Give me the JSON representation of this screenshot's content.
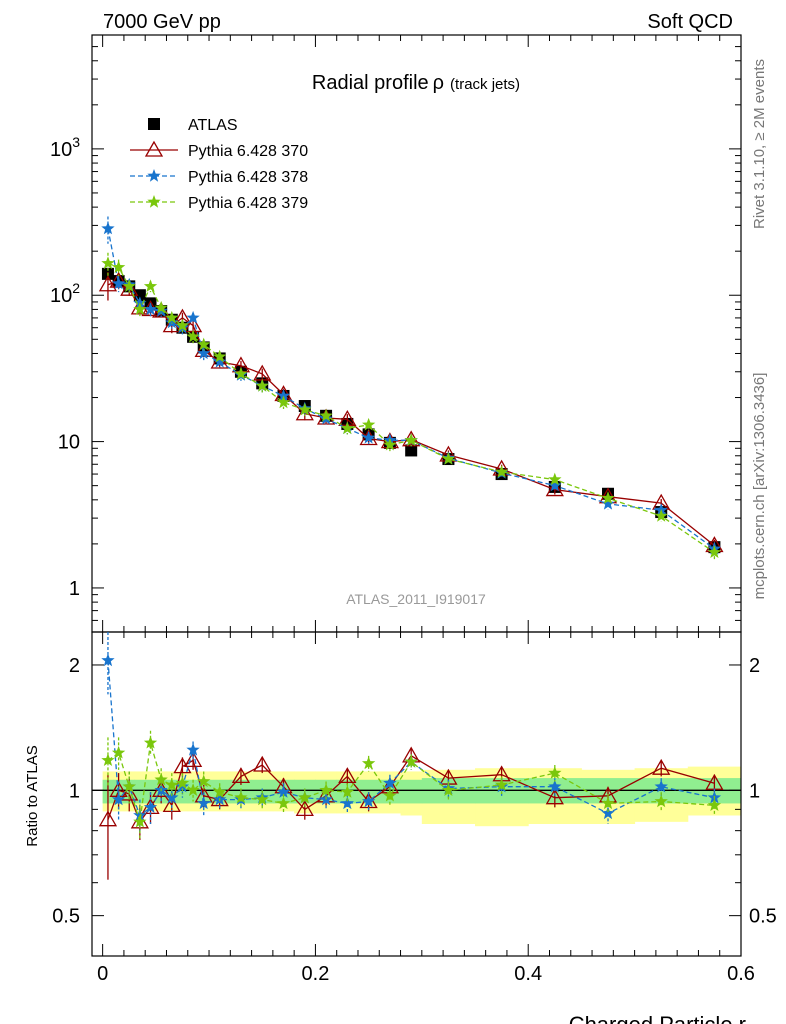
{
  "header": {
    "left": "7000 GeV pp",
    "right": "Soft QCD"
  },
  "side_labels": {
    "top": "Rivet 3.1.10, ≥ 2M events",
    "bottom": "mcplots.cern.ch [arXiv:1306.3436]"
  },
  "chart_data": [
    {
      "type": "scatter",
      "title": "Radial profile",
      "title_symbol": "ρ",
      "title_suffix": "(track jets)",
      "analysis_label": "ATLAS_2011_I919017",
      "xlabel": "",
      "ylabel": "",
      "xlim": [
        -0.01,
        0.6
      ],
      "ylim": [
        0.5,
        6000
      ],
      "y_scale": "log",
      "y_ticks": [
        {
          "value": 1,
          "label": "1"
        },
        {
          "value": 10,
          "label": "10"
        },
        {
          "value": 100,
          "label": "10",
          "sup": "2"
        },
        {
          "value": 1000,
          "label": "10",
          "sup": "3"
        }
      ],
      "legend_position": "top-left",
      "x": [
        0.005,
        0.015,
        0.025,
        0.035,
        0.045,
        0.055,
        0.065,
        0.075,
        0.085,
        0.095,
        0.11,
        0.13,
        0.15,
        0.17,
        0.19,
        0.21,
        0.23,
        0.25,
        0.27,
        0.29,
        0.325,
        0.375,
        0.425,
        0.475,
        0.525,
        0.575
      ],
      "series": [
        {
          "name": "ATLAS",
          "color": "#000000",
          "marker": "square",
          "values": [
            140,
            125,
            115,
            100,
            88,
            78,
            68,
            60,
            52,
            44,
            37,
            30,
            25,
            20.5,
            17.5,
            15,
            13.2,
            11.2,
            9.8,
            8.7,
            7.6,
            6.0,
            4.9,
            4.4,
            3.3,
            1.9
          ]
        },
        {
          "name": "Pythia 6.428 370",
          "color": "#990000",
          "marker": "triangle",
          "line": "solid",
          "values": [
            118,
            125,
            110,
            82,
            80,
            78,
            62,
            70,
            62,
            42,
            35,
            33,
            29,
            21,
            15.5,
            14.5,
            14.2,
            10.5,
            10.0,
            10.3,
            8.1,
            6.5,
            4.7,
            4.2,
            3.8,
            1.95
          ],
          "errors": [
            26,
            15,
            11,
            8,
            8,
            7,
            7,
            6,
            5,
            4,
            3,
            2.5,
            2.5,
            2,
            1.5,
            1.2,
            1.2,
            1,
            0.9,
            0.9,
            0.6,
            0.45,
            0.35,
            0.3,
            0.25,
            0.18
          ]
        },
        {
          "name": "Pythia 6.428 378",
          "color": "#1874cd",
          "marker": "star",
          "line": "dashed",
          "values": [
            285,
            120,
            118,
            88,
            80,
            78,
            65,
            60,
            70,
            40,
            35,
            28.5,
            24,
            20.5,
            16.8,
            14.3,
            12.3,
            10.6,
            10.2,
            10.2,
            7.7,
            6.1,
            5.0,
            3.75,
            3.4,
            1.85
          ],
          "errors": [
            60,
            15,
            11,
            8,
            8,
            7,
            6,
            6,
            5,
            4,
            3,
            2.5,
            2.3,
            1.8,
            1.5,
            1.2,
            1.1,
            1,
            0.9,
            0.9,
            0.6,
            0.45,
            0.35,
            0.3,
            0.25,
            0.18
          ]
        },
        {
          "name": "Pythia 6.428 379",
          "color": "#7ac70c",
          "marker": "star",
          "line": "dashed",
          "values": [
            165,
            155,
            115,
            80,
            115,
            82,
            70,
            62,
            52,
            46,
            38,
            29,
            24,
            18.5,
            16.5,
            15,
            12.3,
            13,
            9.5,
            10.2,
            7.6,
            6.2,
            5.5,
            4.1,
            3.1,
            1.75
          ],
          "errors": [
            30,
            20,
            11,
            8,
            10,
            7,
            6,
            6,
            5,
            4,
            3,
            2.5,
            2.3,
            1.8,
            1.5,
            1.2,
            1.1,
            1.1,
            0.9,
            0.9,
            0.6,
            0.45,
            0.4,
            0.3,
            0.25,
            0.18
          ]
        }
      ]
    },
    {
      "type": "scatter",
      "xlabel": "Charged Particle r",
      "ylabel": "Ratio to ATLAS",
      "xlim": [
        -0.01,
        0.6
      ],
      "ylim": [
        0.4,
        2.4
      ],
      "y_scale": "log",
      "reference_line": 1,
      "x_ticks": [
        {
          "value": 0,
          "label": "0"
        },
        {
          "value": 0.2,
          "label": "0.2"
        },
        {
          "value": 0.4,
          "label": "0.4"
        },
        {
          "value": 0.6,
          "label": "0.6"
        }
      ],
      "y_ticks": [
        {
          "value": 0.5,
          "label": "0.5"
        },
        {
          "value": 1,
          "label": "1"
        },
        {
          "value": 2,
          "label": "2"
        }
      ],
      "x": [
        0.005,
        0.015,
        0.025,
        0.035,
        0.045,
        0.055,
        0.065,
        0.075,
        0.085,
        0.095,
        0.11,
        0.13,
        0.15,
        0.17,
        0.19,
        0.21,
        0.23,
        0.25,
        0.27,
        0.29,
        0.325,
        0.375,
        0.425,
        0.475,
        0.525,
        0.575
      ],
      "bands": {
        "bin_edges": [
          0.0,
          0.01,
          0.02,
          0.03,
          0.04,
          0.05,
          0.06,
          0.07,
          0.08,
          0.09,
          0.1,
          0.12,
          0.14,
          0.16,
          0.18,
          0.2,
          0.22,
          0.24,
          0.26,
          0.28,
          0.3,
          0.35,
          0.4,
          0.45,
          0.5,
          0.55,
          0.6
        ],
        "inner": {
          "color": "#90ee90",
          "low": [
            0.93,
            0.93,
            0.93,
            0.93,
            0.93,
            0.93,
            0.93,
            0.93,
            0.93,
            0.93,
            0.93,
            0.93,
            0.93,
            0.93,
            0.93,
            0.93,
            0.93,
            0.93,
            0.93,
            0.93,
            0.93,
            0.93,
            0.93,
            0.93,
            0.93,
            0.93
          ],
          "high": [
            1.06,
            1.06,
            1.06,
            1.06,
            1.06,
            1.06,
            1.06,
            1.06,
            1.06,
            1.06,
            1.06,
            1.06,
            1.06,
            1.06,
            1.06,
            1.06,
            1.06,
            1.06,
            1.06,
            1.06,
            1.07,
            1.07,
            1.07,
            1.07,
            1.07,
            1.07
          ]
        },
        "outer": {
          "color": "#ffff99",
          "low": [
            0.89,
            0.89,
            0.89,
            0.89,
            0.89,
            0.89,
            0.89,
            0.89,
            0.89,
            0.89,
            0.89,
            0.89,
            0.89,
            0.89,
            0.88,
            0.88,
            0.88,
            0.88,
            0.88,
            0.87,
            0.83,
            0.82,
            0.83,
            0.83,
            0.84,
            0.87
          ],
          "high": [
            1.11,
            1.11,
            1.11,
            1.11,
            1.11,
            1.11,
            1.11,
            1.11,
            1.11,
            1.11,
            1.11,
            1.11,
            1.11,
            1.11,
            1.11,
            1.11,
            1.11,
            1.11,
            1.11,
            1.11,
            1.12,
            1.13,
            1.13,
            1.12,
            1.13,
            1.14
          ]
        }
      },
      "series": [
        {
          "name": "Pythia 6.428 370",
          "color": "#990000",
          "marker": "triangle",
          "line": "solid",
          "values": [
            0.85,
            1.0,
            0.98,
            0.84,
            0.91,
            1.0,
            0.92,
            1.14,
            1.18,
            0.97,
            0.95,
            1.08,
            1.15,
            1.02,
            0.9,
            0.97,
            1.08,
            0.94,
            1.02,
            1.21,
            1.07,
            1.09,
            0.96,
            0.97,
            1.13,
            1.04
          ],
          "errors": [
            0.24,
            0.1,
            0.09,
            0.08,
            0.08,
            0.07,
            0.07,
            0.06,
            0.06,
            0.06,
            0.05,
            0.05,
            0.05,
            0.05,
            0.05,
            0.05,
            0.05,
            0.05,
            0.05,
            0.05,
            0.05,
            0.05,
            0.05,
            0.05,
            0.05,
            0.05
          ]
        },
        {
          "name": "Pythia 6.428 378",
          "color": "#1874cd",
          "marker": "star",
          "line": "dashed",
          "values": [
            2.05,
            0.95,
            1.02,
            0.87,
            0.91,
            1.0,
            0.96,
            1.02,
            1.25,
            0.93,
            0.95,
            0.95,
            0.96,
            0.99,
            0.96,
            0.95,
            0.93,
            0.94,
            1.04,
            1.17,
            1.01,
            1.02,
            1.02,
            0.88,
            1.02,
            0.96
          ],
          "errors": [
            0.35,
            0.1,
            0.09,
            0.08,
            0.08,
            0.07,
            0.07,
            0.06,
            0.06,
            0.06,
            0.05,
            0.05,
            0.05,
            0.05,
            0.05,
            0.05,
            0.05,
            0.05,
            0.05,
            0.05,
            0.05,
            0.05,
            0.05,
            0.05,
            0.05,
            0.05
          ]
        },
        {
          "name": "Pythia 6.428 379",
          "color": "#7ac70c",
          "marker": "star",
          "line": "dashed",
          "values": [
            1.18,
            1.23,
            1.02,
            0.84,
            1.3,
            1.06,
            1.03,
            1.04,
            1.0,
            1.05,
            0.99,
            0.96,
            0.95,
            0.93,
            0.96,
            1.0,
            0.99,
            1.16,
            0.97,
            1.17,
            1.0,
            1.03,
            1.1,
            0.93,
            0.94,
            0.92
          ],
          "errors": [
            0.16,
            0.11,
            0.09,
            0.08,
            0.09,
            0.07,
            0.07,
            0.06,
            0.06,
            0.06,
            0.05,
            0.05,
            0.05,
            0.05,
            0.05,
            0.05,
            0.05,
            0.05,
            0.05,
            0.05,
            0.05,
            0.05,
            0.05,
            0.05,
            0.05,
            0.05
          ]
        }
      ]
    }
  ]
}
